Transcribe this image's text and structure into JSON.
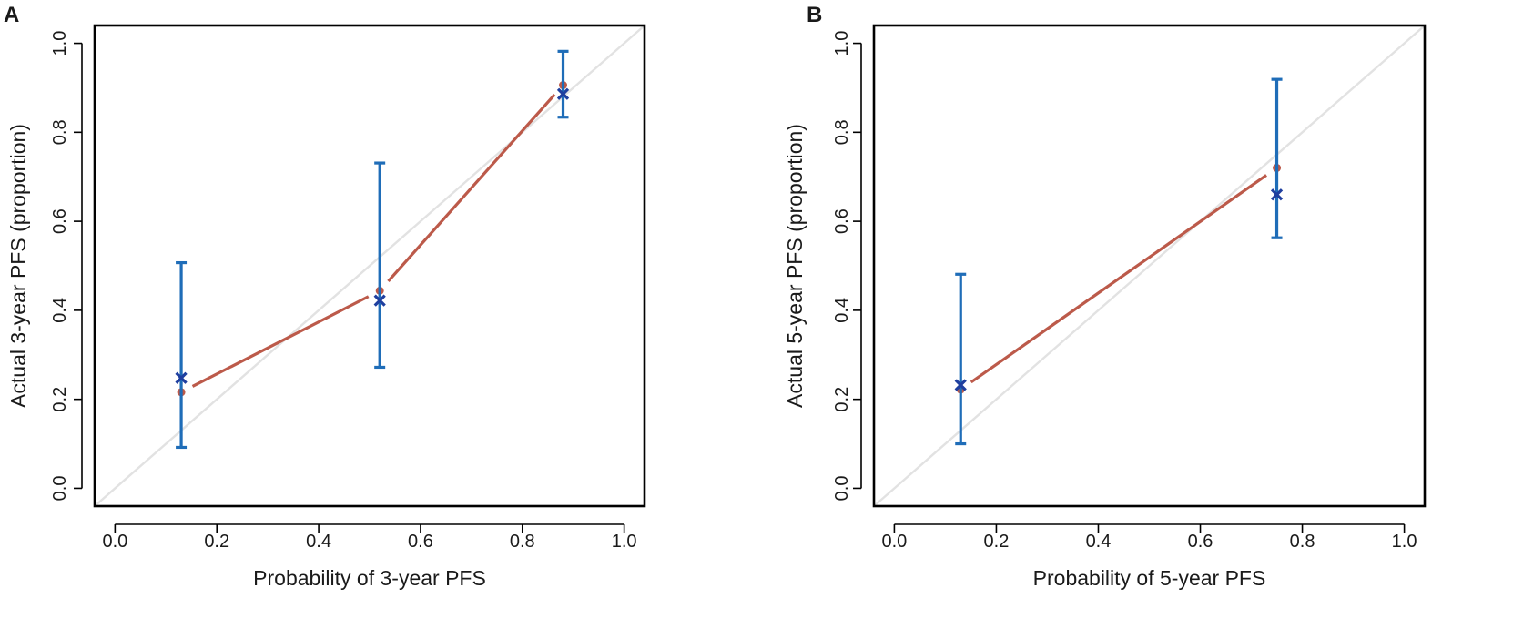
{
  "chart_data": [
    {
      "type": "scatter",
      "panel_label": "A",
      "xlabel": "Probability of 3-year PFS",
      "ylabel": "Actual 3-year PFS (proportion)",
      "xlim": [
        -0.04,
        1.04
      ],
      "ylim": [
        -0.04,
        1.04
      ],
      "x_ticks": [
        0.0,
        0.2,
        0.4,
        0.6,
        0.8,
        1.0
      ],
      "x_tick_labels": [
        "0.0",
        "0.2",
        "0.4",
        "0.6",
        "0.8",
        "1.0"
      ],
      "y_ticks": [
        0.0,
        0.2,
        0.4,
        0.6,
        0.8,
        1.0
      ],
      "y_tick_labels": [
        "0.0",
        "0.2",
        "0.4",
        "0.6",
        "0.8",
        "1.0"
      ],
      "reference_line": {
        "name": "ideal",
        "from": [
          -0.04,
          -0.04
        ],
        "to": [
          1.04,
          1.04
        ],
        "color": "#e2e2e2"
      },
      "series": [
        {
          "name": "calibration",
          "color": "#bc5a4a",
          "x": [
            0.13,
            0.52,
            0.88
          ],
          "y": [
            0.216,
            0.444,
            0.906
          ]
        },
        {
          "name": "observed",
          "color": "#1f3f9f",
          "x": [
            0.13,
            0.52,
            0.88
          ],
          "y": [
            0.248,
            0.422,
            0.886
          ],
          "lower": [
            0.092,
            0.272,
            0.834
          ],
          "upper": [
            0.507,
            0.731,
            0.982
          ]
        }
      ]
    },
    {
      "type": "scatter",
      "panel_label": "B",
      "xlabel": "Probability of 5-year PFS",
      "ylabel": "Actual 5-year PFS (proportion)",
      "xlim": [
        -0.04,
        1.04
      ],
      "ylim": [
        -0.04,
        1.04
      ],
      "x_ticks": [
        0.0,
        0.2,
        0.4,
        0.6,
        0.8,
        1.0
      ],
      "x_tick_labels": [
        "0.0",
        "0.2",
        "0.4",
        "0.6",
        "0.8",
        "1.0"
      ],
      "y_ticks": [
        0.0,
        0.2,
        0.4,
        0.6,
        0.8,
        1.0
      ],
      "y_tick_labels": [
        "0.0",
        "0.2",
        "0.4",
        "0.6",
        "0.8",
        "1.0"
      ],
      "reference_line": {
        "name": "ideal",
        "from": [
          -0.04,
          -0.04
        ],
        "to": [
          1.04,
          1.04
        ],
        "color": "#e2e2e2"
      },
      "series": [
        {
          "name": "calibration",
          "color": "#bc5a4a",
          "x": [
            0.13,
            0.75
          ],
          "y": [
            0.222,
            0.72
          ]
        },
        {
          "name": "observed",
          "color": "#1f3f9f",
          "x": [
            0.13,
            0.75
          ],
          "y": [
            0.232,
            0.66
          ],
          "lower": [
            0.1,
            0.563
          ],
          "upper": [
            0.481,
            0.919
          ]
        }
      ]
    }
  ]
}
